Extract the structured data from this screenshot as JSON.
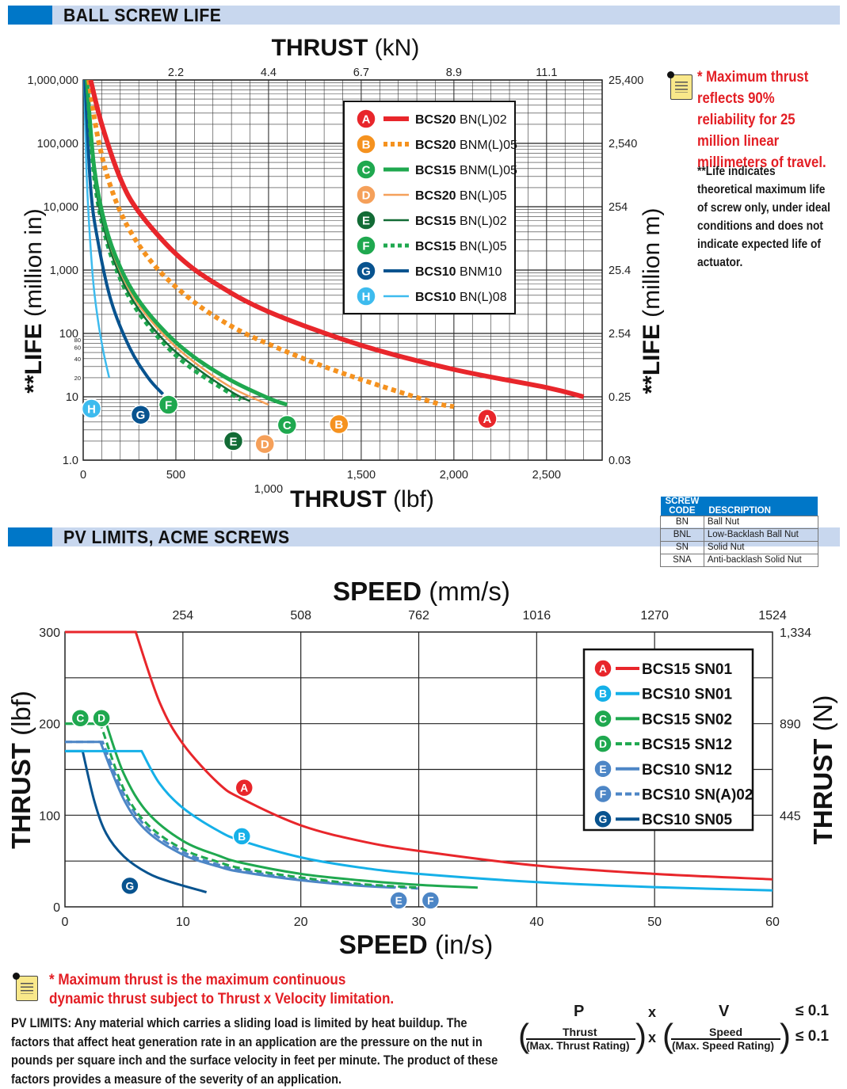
{
  "sections": {
    "life_title": "BALL SCREW LIFE",
    "pv_title": "PV LIMITS, ACME SCREWS"
  },
  "colors": {
    "section_accent": "#0077c8",
    "section_band": "#c8d7ee",
    "note_red": "#e31e24"
  },
  "life_notes": {
    "max_thrust": "* Maximum thrust reflects 90% reliability for 25 million linear millimeters of travel.",
    "life_note": "**Life indicates theoretical maximum life of screw only, under ideal conditions and does not indicate expected life of actuator."
  },
  "screw_codes": {
    "header_code_1": "SCREW",
    "header_code_2": "CODE",
    "header_desc": "DESCRIPTION",
    "rows": [
      {
        "code": "BN",
        "desc": "Ball Nut"
      },
      {
        "code": "BNL",
        "desc": "Low-Backlash Ball Nut"
      },
      {
        "code": "SN",
        "desc": "Solid Nut"
      },
      {
        "code": "SNA",
        "desc": "Anti-backlash Solid Nut"
      }
    ]
  },
  "pv_notes": {
    "max_thrust": "* Maximum thrust is the maximum continuous\ndynamic thrust subject to Thrust x Velocity limitation.",
    "pv_limits": "PV LIMITS: Any material which carries a sliding load is limited by heat buildup. The factors that affect heat generation rate in an application are the pressure on the nut in pounds per square inch and the surface velocity in feet per minute. The product of these factors provides a measure of the severity of an application."
  },
  "formula": {
    "p": "P",
    "x": "x",
    "v": "V",
    "le1": "≤ 0.1",
    "thrust": "Thrust",
    "max_thrust": "(Max. Thrust Rating)",
    "speed": "Speed",
    "max_speed": "(Max. Speed Rating)",
    "le2": "≤ 0.1"
  },
  "chart_data": [
    {
      "type": "line",
      "title_top_bold": "THRUST",
      "title_top_unit": "(kN)",
      "xlabel_bold": "THRUST",
      "xlabel_unit": "(lbf)",
      "ylabel_left_bold": "**LIFE",
      "ylabel_left_unit": "(million in)",
      "ylabel_right_bold": "**LIFE",
      "ylabel_right_unit": "(million m)",
      "xlim": [
        0,
        2800
      ],
      "ylim": [
        1,
        1000000
      ],
      "yscale": "log",
      "x_ticks": [
        0,
        500,
        1000,
        1500,
        2000,
        2500
      ],
      "x_tick_labels": [
        "0",
        "500",
        "1,000",
        "1,500",
        "2,000",
        "2,500"
      ],
      "top_ticks": [
        500,
        1000,
        1500,
        2000,
        2500
      ],
      "top_tick_labels": [
        "2.2",
        "4.4",
        "6.7",
        "8.9",
        "11.1"
      ],
      "y_ticks": [
        1,
        10,
        100,
        1000,
        10000,
        100000,
        1000000
      ],
      "y_tick_labels": [
        "1.0",
        "10",
        "100",
        "1,000",
        "10,000",
        "100,000",
        "1,000,000"
      ],
      "y_minor_labels": [
        {
          "v": 80,
          "t": "80"
        },
        {
          "v": 60,
          "t": "60"
        },
        {
          "v": 40,
          "t": "40"
        },
        {
          "v": 20,
          "t": "20"
        }
      ],
      "right_tick_labels": [
        "0.03",
        "0.25",
        "2.54",
        "25.4",
        "254",
        "2,540",
        "25,400"
      ],
      "legend_position": "top-right",
      "series": [
        {
          "letter": "A",
          "name_bold": "BCS20",
          "name_rest": " BN(L)02",
          "color": "#e8262b",
          "style": "solid",
          "width": 6,
          "x": [
            40,
            100,
            200,
            300,
            500,
            700,
            1000,
            1500,
            2000,
            2500,
            2700
          ],
          "y": [
            1000000,
            200000,
            28000,
            8300,
            1800,
            650,
            220,
            65,
            27,
            14,
            10
          ],
          "label_at": [
            2180,
            4.5
          ]
        },
        {
          "letter": "B",
          "name_bold": "BCS20",
          "name_rest": " BNM(L)05",
          "color": "#f5921f",
          "style": "dotted",
          "width": 6,
          "x": [
            30,
            80,
            150,
            250,
            400,
            600,
            800,
            1000,
            1300,
            1600,
            1900,
            2000
          ],
          "y": [
            1000000,
            120000,
            20000,
            4300,
            1050,
            310,
            130,
            68,
            30,
            15,
            8,
            7
          ],
          "label_at": [
            1380,
            3.7
          ]
        },
        {
          "letter": "C",
          "name_bold": "BCS15",
          "name_rest": " BNM(L)05",
          "color": "#1fa84f",
          "style": "solid",
          "width": 5,
          "x": [
            20,
            60,
            120,
            200,
            300,
            450,
            600,
            800,
            1000,
            1100
          ],
          "y": [
            1000000,
            40000,
            5000,
            1100,
            330,
            100,
            42,
            18,
            9.5,
            7.5
          ],
          "label_at": [
            1100,
            3.6
          ]
        },
        {
          "letter": "D",
          "name_bold": "BCS20",
          "name_rest": " BN(L)05",
          "color": "#f5a05a",
          "style": "solid",
          "width": 2.5,
          "x": [
            20,
            60,
            120,
            200,
            300,
            450,
            600,
            800,
            1000
          ],
          "y": [
            1000000,
            35000,
            4400,
            950,
            280,
            85,
            35,
            14,
            7.5
          ],
          "label_at": [
            980,
            1.8
          ]
        },
        {
          "letter": "E",
          "name_bold": "BCS15",
          "name_rest": " BN(L)02",
          "color": "#126b35",
          "style": "solid",
          "width": 2.5,
          "x": [
            20,
            60,
            120,
            200,
            300,
            450,
            600,
            800,
            900
          ],
          "y": [
            1000000,
            30000,
            3700,
            800,
            240,
            70,
            30,
            12,
            8.5
          ],
          "label_at": [
            810,
            2.0
          ]
        },
        {
          "letter": "F",
          "name_bold": "BCS15",
          "name_rest": " BN(L)05",
          "color": "#1fa84f",
          "style": "dotted",
          "width": 5,
          "x": [
            20,
            60,
            120,
            200,
            300,
            450,
            600,
            800,
            850
          ],
          "y": [
            1000000,
            28000,
            3300,
            720,
            210,
            62,
            26,
            11,
            9
          ],
          "label_at": [
            460,
            7.5
          ]
        },
        {
          "letter": "G",
          "name_bold": "BCS10",
          "name_rest": " BNM10",
          "color": "#08538f",
          "style": "solid",
          "width": 4,
          "x": [
            10,
            40,
            80,
            150,
            250,
            350,
            430
          ],
          "y": [
            1000000,
            20000,
            2800,
            330,
            60,
            20,
            11
          ],
          "label_at": [
            310,
            5.2
          ]
        },
        {
          "letter": "H",
          "name_bold": "BCS10",
          "name_rest": " BN(L)08",
          "color": "#3dbbee",
          "style": "solid",
          "width": 2.5,
          "x": [
            5,
            20,
            50,
            80,
            110,
            140
          ],
          "y": [
            1000000,
            25000,
            900,
            160,
            50,
            20
          ],
          "label_at": [
            45,
            6.5
          ]
        }
      ]
    },
    {
      "type": "line",
      "title_top_bold": "SPEED",
      "title_top_unit": "(mm/s)",
      "xlabel_bold": "SPEED",
      "xlabel_unit": "(in/s)",
      "ylabel_left_bold": "THRUST",
      "ylabel_left_unit": "(lbf)",
      "ylabel_right_bold": "THRUST",
      "ylabel_right_unit": "(N)",
      "xlim": [
        0,
        60
      ],
      "ylim": [
        0,
        300
      ],
      "x_ticks": [
        0,
        10,
        20,
        30,
        40,
        50,
        60
      ],
      "top_tick_labels": [
        "254",
        "508",
        "762",
        "1016",
        "1270",
        "1524"
      ],
      "y_ticks": [
        0,
        100,
        200,
        300
      ],
      "right_tick_labels": [
        "445",
        "890",
        "1,334"
      ],
      "legend_position": "top-right",
      "series": [
        {
          "letter": "A",
          "name": "BCS15 SN01",
          "color": "#e8262b",
          "style": "solid",
          "width": 3,
          "x": [
            0,
            6,
            8,
            10,
            13,
            15,
            20,
            25,
            30,
            40,
            50,
            60
          ],
          "y": [
            300,
            300,
            224,
            178,
            135,
            118,
            89,
            72,
            61,
            45,
            36,
            30
          ],
          "label_at": [
            15.2,
            130
          ]
        },
        {
          "letter": "B",
          "name": "BCS10 SN01",
          "color": "#15b0e8",
          "style": "solid",
          "width": 3,
          "x": [
            0,
            6.5,
            8,
            10,
            13,
            15,
            20,
            25,
            30,
            40,
            50,
            60
          ],
          "y": [
            170,
            170,
            135,
            108,
            83,
            72,
            54,
            43,
            36,
            27,
            21.5,
            18
          ],
          "label_at": [
            15,
            77
          ]
        },
        {
          "letter": "C",
          "name": "BCS15 SN02",
          "color": "#1fa84f",
          "style": "solid",
          "width": 3,
          "x": [
            0,
            3.5,
            5,
            7,
            10,
            13,
            15,
            20,
            25,
            30,
            35
          ],
          "y": [
            200,
            200,
            145,
            103,
            72,
            56,
            48,
            36,
            29,
            24,
            21
          ],
          "label_at": [
            1.3,
            206
          ]
        },
        {
          "letter": "D",
          "name": "BCS15 SN12",
          "color": "#1fa84f",
          "style": "dashed",
          "width": 3,
          "x": [
            0,
            3,
            5,
            7,
            10,
            13,
            15,
            20,
            25,
            30
          ],
          "y": [
            200,
            200,
            128,
            90,
            63,
            49,
            42,
            32,
            25,
            21
          ],
          "label_at": [
            3.1,
            206
          ]
        },
        {
          "letter": "E",
          "name": "BCS10 SN12",
          "color": "#4d86c6",
          "style": "solid",
          "width": 3,
          "x": [
            0,
            3,
            5,
            7,
            10,
            13,
            15,
            20,
            25,
            28
          ],
          "y": [
            180,
            180,
            117,
            82,
            57,
            44,
            38,
            29,
            23,
            21
          ],
          "label_at": [
            28.3,
            7
          ]
        },
        {
          "letter": "F",
          "name": "BCS10 SN(A)02",
          "color": "#4d86c6",
          "style": "dashed",
          "width": 3,
          "x": [
            0,
            3.2,
            5,
            7,
            10,
            13,
            15,
            20,
            25,
            30
          ],
          "y": [
            180,
            180,
            123,
            86,
            60,
            46,
            40,
            30,
            24,
            20
          ],
          "label_at": [
            31,
            7
          ]
        },
        {
          "letter": "G",
          "name": "BCS10 SN05",
          "color": "#08538f",
          "style": "solid",
          "width": 3,
          "x": [
            0,
            1.5,
            2.5,
            3.5,
            5,
            7,
            9,
            12
          ],
          "y": [
            170,
            170,
            115,
            80,
            55,
            37,
            27,
            16
          ],
          "label_at": [
            5.5,
            23
          ]
        }
      ]
    }
  ]
}
